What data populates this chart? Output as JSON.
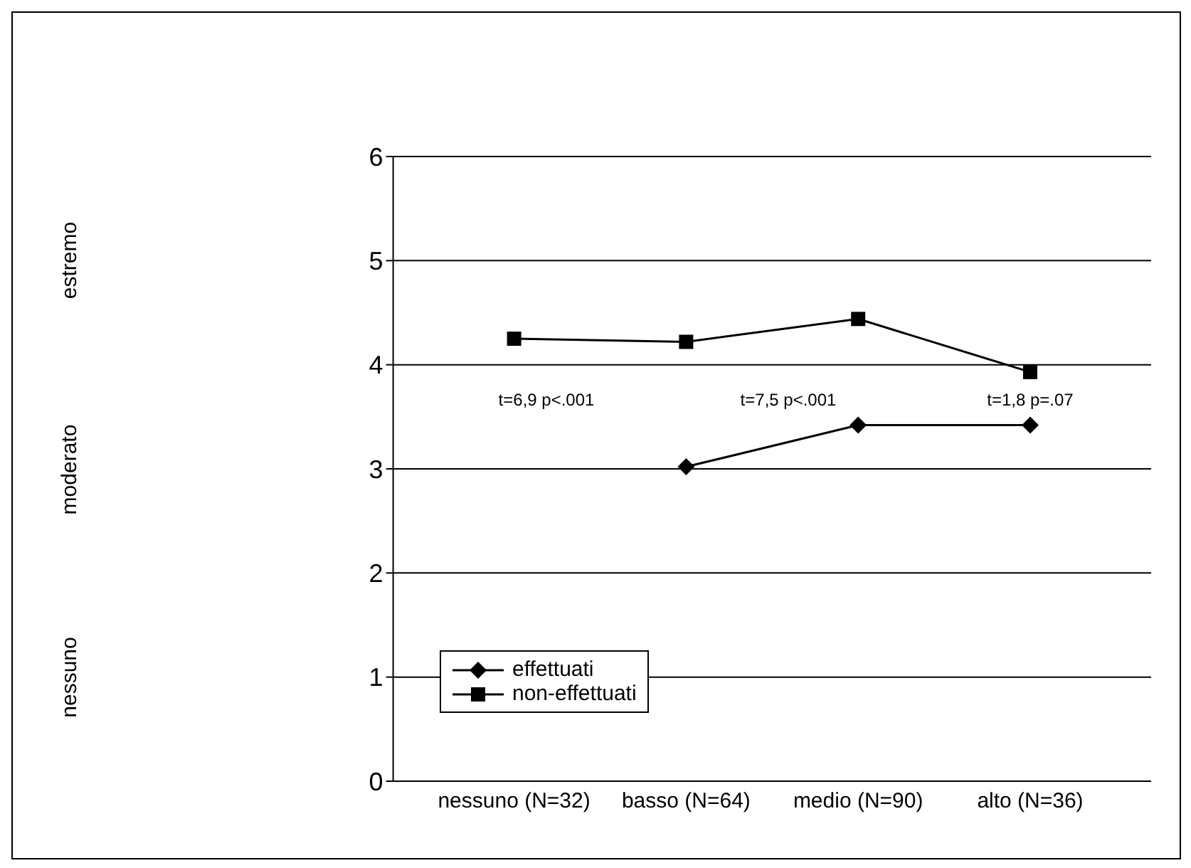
{
  "chart_data": {
    "type": "line",
    "categories": [
      "nessuno (N=32)",
      "basso (N=64)",
      "medio (N=90)",
      "alto (N=36)"
    ],
    "series": [
      {
        "name": "effettuati",
        "color": "#000000",
        "marker": "diamond",
        "values": [
          null,
          3.02,
          3.42,
          3.42
        ]
      },
      {
        "name": "non-effettuati",
        "color": "#000000",
        "marker": "square",
        "values": [
          4.25,
          4.22,
          4.44,
          3.93
        ]
      }
    ],
    "ylim": [
      0,
      6
    ],
    "yticks": [
      0,
      1,
      2,
      3,
      4,
      5,
      6
    ],
    "grid": "y",
    "legend": "bottom",
    "line_style": "solid",
    "annotations": [
      "nessuno",
      "moderato",
      "estremo",
      "t=6,9 p<.001",
      "t=7,5 p<.001",
      "t=1,8 p=.07"
    ]
  }
}
